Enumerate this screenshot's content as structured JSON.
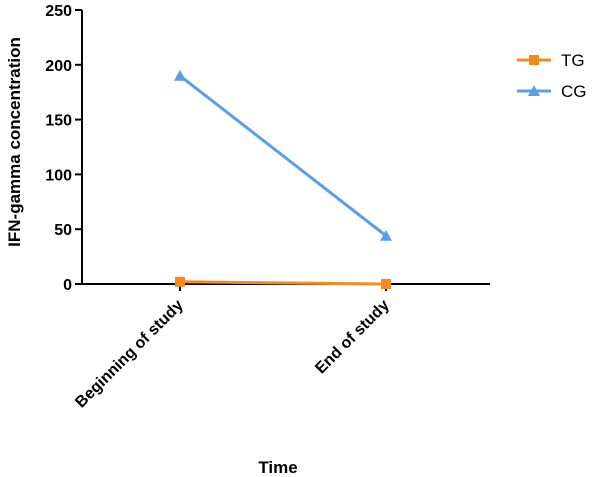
{
  "chart_data": {
    "type": "line",
    "categories": [
      "Beginning of study",
      "End of study"
    ],
    "series": [
      {
        "name": "TG",
        "values": [
          2,
          0
        ],
        "color": "#f7891f",
        "marker": "square"
      },
      {
        "name": "CG",
        "values": [
          190,
          44
        ],
        "color": "#5b9ee8",
        "marker": "triangle"
      }
    ],
    "xlabel": "Time",
    "ylabel": "IFN-gamma concentration",
    "ylim": [
      0,
      250
    ],
    "yticks": [
      0,
      50,
      100,
      150,
      200,
      250
    ],
    "grid": false,
    "legend": "top-right"
  }
}
